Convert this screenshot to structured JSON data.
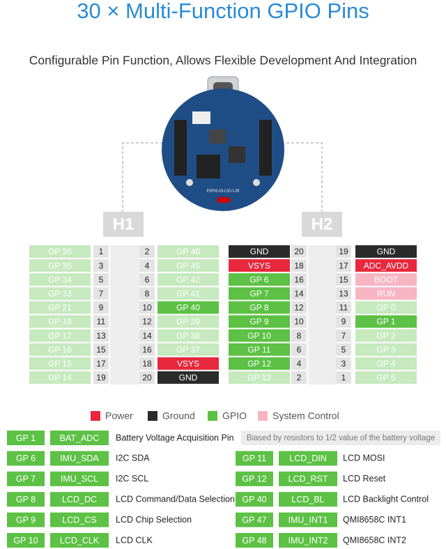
{
  "title": "30 × Multi-Function GPIO Pins",
  "subtitle": "Configurable Pin Function, Allows Flexible Development And Integration",
  "board": {
    "label": "ESP32-S3-LCD-1.28"
  },
  "headers": [
    {
      "label": "H1",
      "rows": [
        {
          "left": {
            "label": "GP 36",
            "color": "#c6e9be"
          },
          "left_pin": 1,
          "right_pin": 2,
          "right": {
            "label": "GP 46",
            "color": "#c6e9be"
          }
        },
        {
          "left": {
            "label": "GP 35",
            "color": "#c6e9be"
          },
          "left_pin": 3,
          "right_pin": 4,
          "right": {
            "label": "GP 45",
            "color": "#c6e9be"
          }
        },
        {
          "left": {
            "label": "GP 34",
            "color": "#c6e9be"
          },
          "left_pin": 5,
          "right_pin": 6,
          "right": {
            "label": "GP 42",
            "color": "#c6e9be"
          }
        },
        {
          "left": {
            "label": "GP 33",
            "color": "#c6e9be"
          },
          "left_pin": 7,
          "right_pin": 8,
          "right": {
            "label": "GP 41",
            "color": "#c6e9be"
          }
        },
        {
          "left": {
            "label": "GP 21",
            "color": "#c6e9be"
          },
          "left_pin": 9,
          "right_pin": 10,
          "right": {
            "label": "GP 40",
            "color": "#5cc144"
          }
        },
        {
          "left": {
            "label": "GP 18",
            "color": "#c6e9be"
          },
          "left_pin": 11,
          "right_pin": 12,
          "right": {
            "label": "GP 39",
            "color": "#c6e9be"
          }
        },
        {
          "left": {
            "label": "GP 17",
            "color": "#c6e9be"
          },
          "left_pin": 13,
          "right_pin": 14,
          "right": {
            "label": "GP 38",
            "color": "#c6e9be"
          }
        },
        {
          "left": {
            "label": "GP 16",
            "color": "#c6e9be"
          },
          "left_pin": 15,
          "right_pin": 16,
          "right": {
            "label": "GP 37",
            "color": "#c6e9be"
          }
        },
        {
          "left": {
            "label": "GP 15",
            "color": "#c6e9be"
          },
          "left_pin": 17,
          "right_pin": 18,
          "right": {
            "label": "VSYS",
            "color": "#e8283c"
          }
        },
        {
          "left": {
            "label": "GP 14",
            "color": "#c6e9be"
          },
          "left_pin": 19,
          "right_pin": 20,
          "right": {
            "label": "GND",
            "color": "#2b2b2b"
          }
        }
      ]
    },
    {
      "label": "H2",
      "rows": [
        {
          "left": {
            "label": "GND",
            "color": "#2b2b2b"
          },
          "left_pin": 20,
          "right_pin": 19,
          "right": {
            "label": "GND",
            "color": "#2b2b2b"
          }
        },
        {
          "left": {
            "label": "VSYS",
            "color": "#e8283c"
          },
          "left_pin": 18,
          "right_pin": 17,
          "right": {
            "label": "ADC_AVDD",
            "color": "#e8283c"
          }
        },
        {
          "left": {
            "label": "GP 6",
            "color": "#5cc144"
          },
          "left_pin": 16,
          "right_pin": 15,
          "right": {
            "label": "BOOT",
            "color": "#f7b5c3"
          }
        },
        {
          "left": {
            "label": "GP 7",
            "color": "#5cc144"
          },
          "left_pin": 14,
          "right_pin": 13,
          "right": {
            "label": "RUN",
            "color": "#f7b5c3"
          }
        },
        {
          "left": {
            "label": "GP 8",
            "color": "#5cc144"
          },
          "left_pin": 12,
          "right_pin": 11,
          "right": {
            "label": "GP 0",
            "color": "#c6e9be"
          }
        },
        {
          "left": {
            "label": "GP 9",
            "color": "#5cc144"
          },
          "left_pin": 10,
          "right_pin": 9,
          "right": {
            "label": "GP 1",
            "color": "#5cc144"
          }
        },
        {
          "left": {
            "label": "GP 10",
            "color": "#5cc144"
          },
          "left_pin": 8,
          "right_pin": 7,
          "right": {
            "label": "GP 2",
            "color": "#c6e9be"
          }
        },
        {
          "left": {
            "label": "GP 11",
            "color": "#5cc144"
          },
          "left_pin": 6,
          "right_pin": 5,
          "right": {
            "label": "GP 3",
            "color": "#c6e9be"
          }
        },
        {
          "left": {
            "label": "GP 12",
            "color": "#5cc144"
          },
          "left_pin": 4,
          "right_pin": 3,
          "right": {
            "label": "GP 4",
            "color": "#c6e9be"
          }
        },
        {
          "left": {
            "label": "GP 13",
            "color": "#c6e9be"
          },
          "left_pin": 2,
          "right_pin": 1,
          "right": {
            "label": "GP 5",
            "color": "#c6e9be"
          }
        }
      ]
    }
  ],
  "legend": [
    {
      "label": "Power",
      "color": "#e8283c"
    },
    {
      "label": "Ground",
      "color": "#2b2b2b"
    },
    {
      "label": "GPIO",
      "color": "#5cc144"
    },
    {
      "label": "System Control",
      "color": "#f7b5c3"
    }
  ],
  "table": {
    "rows": [
      {
        "cells": [
          {
            "gpio": "GP 1",
            "function": "BAT_ADC",
            "description": "Battery Voltage Acquisition Pin"
          }
        ],
        "note": "Biased by resistors to 1/2 value of the battery voltage"
      },
      {
        "cells": [
          {
            "gpio": "GP 6",
            "function": "IMU_SDA",
            "description": "I2C SDA"
          },
          {
            "gpio": "GP 11",
            "function": "LCD_DIN",
            "description": "LCD MOSI"
          }
        ]
      },
      {
        "cells": [
          {
            "gpio": "GP 7",
            "function": "IMU_SCL",
            "description": "I2C SCL"
          },
          {
            "gpio": "GP 12",
            "function": "LCD_RST",
            "description": "LCD Reset"
          }
        ]
      },
      {
        "cells": [
          {
            "gpio": "GP 8",
            "function": "LCD_DC",
            "description": "LCD Command/Data Selection"
          },
          {
            "gpio": "GP 40",
            "function": "LCD_BL",
            "description": "LCD Backlight Control"
          }
        ]
      },
      {
        "cells": [
          {
            "gpio": "GP 9",
            "function": "LCD_CS",
            "description": "LCD Chip Selection"
          },
          {
            "gpio": "GP 47",
            "function": "IMU_INT1",
            "description": "QMI8658C INT1"
          }
        ]
      },
      {
        "cells": [
          {
            "gpio": "GP 10",
            "function": "LCD_CLK",
            "description": "LCD CLK"
          },
          {
            "gpio": "GP 48",
            "function": "IMU_INT2",
            "description": "QMI8658C INT2"
          }
        ]
      }
    ],
    "color": "#5cc144"
  }
}
